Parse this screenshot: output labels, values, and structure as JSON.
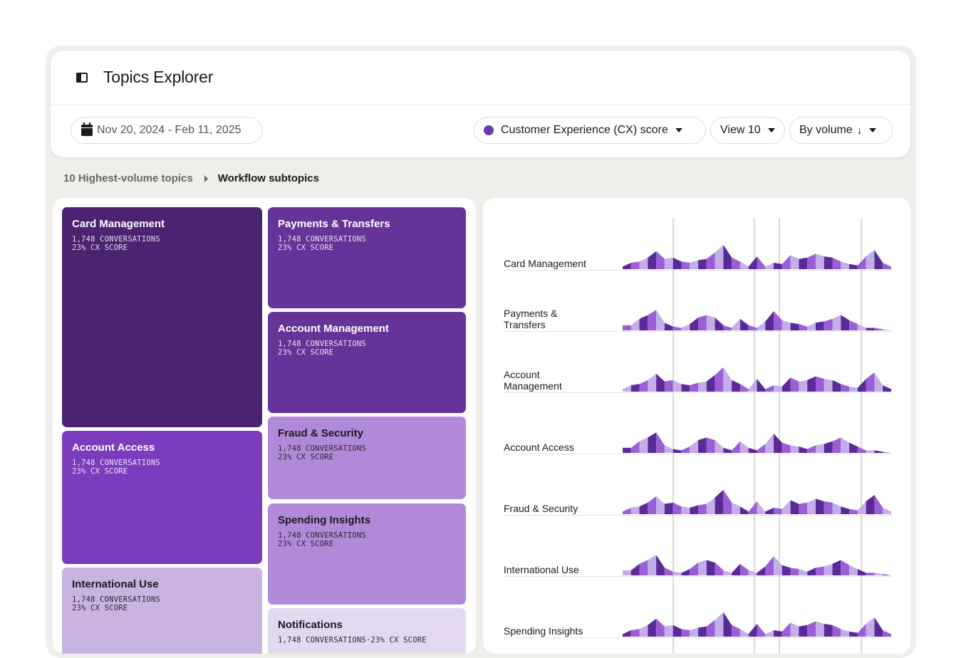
{
  "header": {
    "title": "Topics Explorer",
    "panel_icon": "sidebar-panel-icon"
  },
  "filters": {
    "date_range": "Nov 20, 2024 - Feb 11, 2025",
    "metric": "Customer Experience (CX) score",
    "metric_color": "#6a3ab0",
    "view": "View 10",
    "sort": "By volume"
  },
  "breadcrumb": {
    "parent": "10 Highest-volume topics",
    "current": "Workflow subtopics"
  },
  "treemap": {
    "tiles": [
      {
        "name": "Card Management",
        "conversations": "1,748 CONVERSATIONS",
        "score": "23% CX SCORE",
        "color": "#4a2470"
      },
      {
        "name": "Payments & Transfers",
        "conversations": "1,748 CONVERSATIONS",
        "score": "23% CX SCORE",
        "color": "#663399"
      },
      {
        "name": "Account Management",
        "conversations": "1,748 CONVERSATIONS",
        "score": "23% CX SCORE",
        "color": "#663399"
      },
      {
        "name": "Account Access",
        "conversations": "1,748 CONVERSATIONS",
        "score": "23% CX SCORE",
        "color": "#7d3cbd"
      },
      {
        "name": "Fraud & Security",
        "conversations": "1,748 CONVERSATIONS",
        "score": "23% CX SCORE",
        "color": "#b08ad9"
      },
      {
        "name": "Spending Insights",
        "conversations": "1,748 CONVERSATIONS",
        "score": "23% CX SCORE",
        "color": "#b08ad9"
      },
      {
        "name": "International Use",
        "conversations": "1,748 CONVERSATIONS",
        "score": "23% CX SCORE",
        "color": "#c9b3e3"
      },
      {
        "name": "Notifications",
        "conversations": "1,748 CONVERSATIONS",
        "score": "23% CX SCORE",
        "color": "#e4d8f1"
      }
    ]
  },
  "sparklines": {
    "colors": [
      "#5a2a99",
      "#9a5fd6",
      "#c4aee8"
    ],
    "rows": [
      {
        "label": "Card Management",
        "pattern": "a"
      },
      {
        "label": "Payments & Transfers",
        "pattern": "b"
      },
      {
        "label": "Account Management",
        "pattern": "a"
      },
      {
        "label": "Account Access",
        "pattern": "b"
      },
      {
        "label": "Fraud & Security",
        "pattern": "a"
      },
      {
        "label": "International Use",
        "pattern": "b"
      },
      {
        "label": "Spending Insights",
        "pattern": "a"
      }
    ]
  }
}
